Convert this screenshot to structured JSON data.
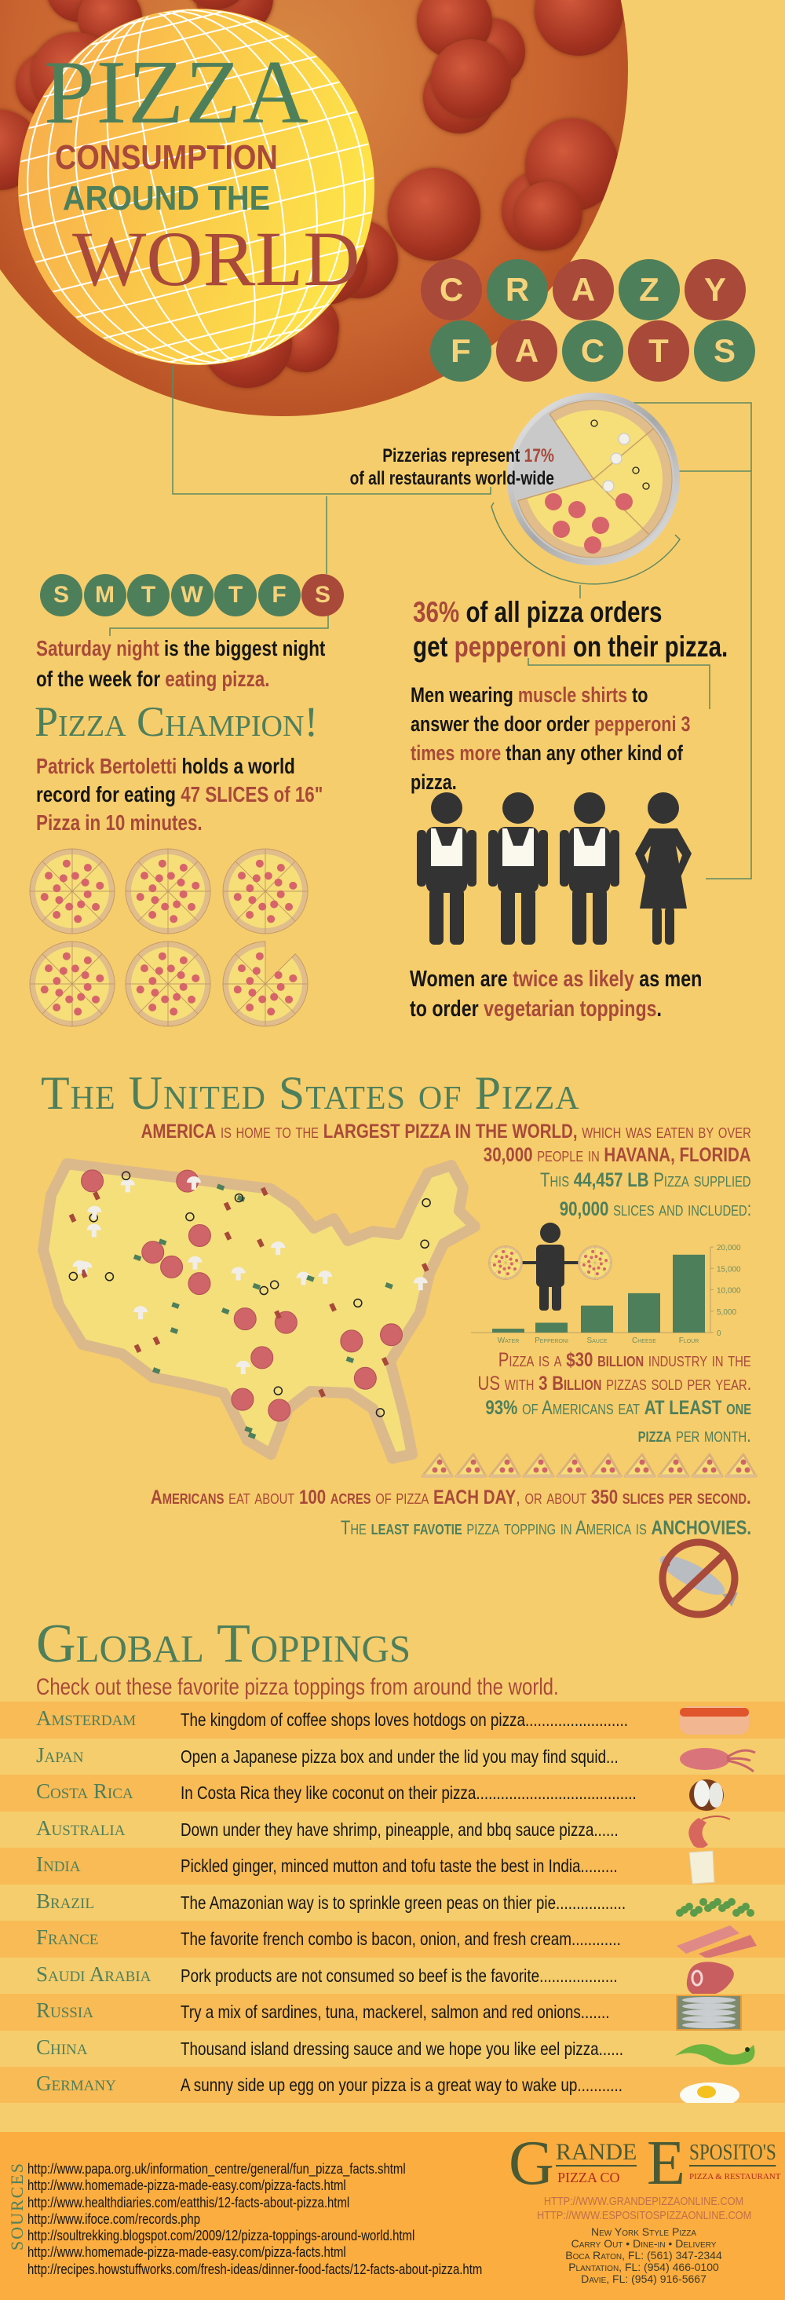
{
  "colors": {
    "background": "#f6cd6c",
    "green": "#4e7f5b",
    "red": "#a8493a",
    "text": "#161616",
    "band_dark": "#f8bb55",
    "band_light": "#f6cd6c",
    "footer": "#fbad3f"
  },
  "header": {
    "title_pizza": "PIZZA",
    "title_consumption": "CONSUMPTION",
    "title_around": "AROUND THE",
    "title_world": "WORLD"
  },
  "crazy_facts": {
    "row1": [
      "C",
      "R",
      "A",
      "Z",
      "Y"
    ],
    "row2": [
      "F",
      "A",
      "C",
      "T",
      "S"
    ]
  },
  "facts": {
    "pizzerias": [
      [
        {
          "t": "Pizzerias represent ",
          "c": "dark"
        },
        {
          "t": "17%",
          "c": "red"
        }
      ],
      [
        {
          "t": "of all restaurants world-wide",
          "c": "dark"
        }
      ]
    ],
    "weekdays": [
      "S",
      "M",
      "T",
      "W",
      "T",
      "F",
      "S"
    ],
    "saturday": [
      [
        {
          "t": "Saturday night",
          "c": "red"
        },
        {
          "t": " is the biggest night",
          "c": "dark"
        }
      ],
      [
        {
          "t": "of the week for ",
          "c": "dark"
        },
        {
          "t": "eating pizza.",
          "c": "red"
        }
      ]
    ],
    "champion_title": "Pizza Champion!",
    "champion": [
      [
        {
          "t": "Patrick Bertoletti",
          "c": "red"
        },
        {
          "t": " holds a world",
          "c": "dark"
        }
      ],
      [
        {
          "t": "record for eating ",
          "c": "dark"
        },
        {
          "t": "47 SLICES of 16\"",
          "c": "red"
        }
      ],
      [
        {
          "t": "Pizza in 10 minutes.",
          "c": "red"
        }
      ]
    ],
    "pepperoni": [
      [
        {
          "t": "36%",
          "c": "red"
        },
        {
          "t": " of all pizza orders",
          "c": "dark"
        }
      ],
      [
        {
          "t": "get ",
          "c": "dark"
        },
        {
          "t": "pepperoni",
          "c": "red"
        },
        {
          "t": " on their pizza.",
          "c": "dark"
        }
      ]
    ],
    "muscle": [
      [
        {
          "t": "Men wearing ",
          "c": "dark"
        },
        {
          "t": "muscle shirts",
          "c": "red"
        },
        {
          "t": " to",
          "c": "dark"
        }
      ],
      [
        {
          "t": "answer the door order ",
          "c": "dark"
        },
        {
          "t": "pepperoni 3",
          "c": "red"
        }
      ],
      [
        {
          "t": "times more",
          "c": "red"
        },
        {
          "t": " than any other kind of",
          "c": "dark"
        }
      ],
      [
        {
          "t": "pizza.",
          "c": "dark"
        }
      ]
    ],
    "women": [
      [
        {
          "t": "Women are ",
          "c": "dark"
        },
        {
          "t": "twice as likely",
          "c": "red"
        },
        {
          "t": " as men",
          "c": "dark"
        }
      ],
      [
        {
          "t": "to order ",
          "c": "dark"
        },
        {
          "t": "vegetarian toppings",
          "c": "red"
        },
        {
          "t": ".",
          "c": "dark"
        }
      ]
    ]
  },
  "us": {
    "title": "The United States of Pizza",
    "lines": [
      [
        {
          "t": "AMERICA",
          "c": "red",
          "b": true
        },
        {
          "t": " is home to the ",
          "c": "red"
        },
        {
          "t": "LARGEST PIZZA IN THE WORLD,",
          "c": "red",
          "b": true
        },
        {
          "t": " which was eaten by  over",
          "c": "red"
        }
      ],
      [
        {
          "t": "30,000",
          "c": "red",
          "b": true
        },
        {
          "t": " people in ",
          "c": "red"
        },
        {
          "t": "HAVANA, FLORIDA",
          "c": "red",
          "b": true
        }
      ],
      [
        {
          "t": "This ",
          "c": "green"
        },
        {
          "t": "44,457 LB",
          "c": "green",
          "b": true
        },
        {
          "t": " Pizza  supplied",
          "c": "green"
        }
      ],
      [
        {
          "t": "90,000",
          "c": "green",
          "b": true
        },
        {
          "t": " slices and included:",
          "c": "green"
        }
      ],
      [
        {
          "t": "Pizza is a ",
          "c": "red"
        },
        {
          "t": "$30 billion",
          "c": "red",
          "b": true
        },
        {
          "t": " industry in the",
          "c": "red"
        }
      ],
      [
        {
          "t": "US with ",
          "c": "red"
        },
        {
          "t": "3 Billion",
          "c": "red",
          "b": true
        },
        {
          "t": " pizzas sold per year.",
          "c": "red"
        }
      ],
      [
        {
          "t": "93%",
          "c": "green",
          "b": true
        },
        {
          "t": " of Americans eat ",
          "c": "green"
        },
        {
          "t": "AT LEAST",
          "c": "green",
          "b": true
        },
        {
          "t": " one",
          "c": "green",
          "b": true
        }
      ],
      [
        {
          "t": "pizza",
          "c": "green",
          "b": true
        },
        {
          "t": " per month.",
          "c": "green"
        }
      ],
      [
        {
          "t": "Americans",
          "c": "red",
          "b": true
        },
        {
          "t": " eat about ",
          "c": "red"
        },
        {
          "t": "100 acres",
          "c": "red",
          "b": true
        },
        {
          "t": " of pizza ",
          "c": "red"
        },
        {
          "t": "EACH DAY",
          "c": "red",
          "b": true
        },
        {
          "t": ", or about ",
          "c": "red"
        },
        {
          "t": "350 slices per second.",
          "c": "red",
          "b": true
        }
      ],
      [
        {
          "t": "The ",
          "c": "green"
        },
        {
          "t": "least favotie",
          "c": "green",
          "b": true
        },
        {
          "t": " pizza topping in America is ",
          "c": "green"
        },
        {
          "t": "ANCHOVIES.",
          "c": "green",
          "b": true
        }
      ]
    ]
  },
  "chart_data": {
    "type": "bar",
    "categories": [
      "Water",
      "Pepperoni",
      "Sauce",
      "Cheese",
      "Flour"
    ],
    "values": [
      900,
      2300,
      6300,
      9200,
      18200
    ],
    "title": "",
    "xlabel": "",
    "ylabel": "",
    "ylim": [
      0,
      20000
    ],
    "yticks": [
      "0",
      "5,000",
      "10,000",
      "15,000",
      "20,000"
    ],
    "bar_color": "#4e7f5b",
    "axis": "right",
    "grid": false
  },
  "toppings": {
    "title": "Global Toppings",
    "subtitle": "Check out these favorite pizza toppings from around the world.",
    "rows": [
      {
        "country": "Amsterdam",
        "description": "The kingdom of coffee shops loves hotdogs on pizza.........................",
        "icon": "hotdog"
      },
      {
        "country": "Japan",
        "description": "Open a Japanese pizza box and under the lid you may find squid...",
        "icon": "squid"
      },
      {
        "country": "Costa Rica",
        "description": "In Costa Rica they like coconut on their pizza.......................................",
        "icon": "coconut"
      },
      {
        "country": "Australia",
        "description": "Down under they have shrimp, pineapple, and bbq sauce pizza......",
        "icon": "shrimp"
      },
      {
        "country": "India",
        "description": "Pickled ginger, minced mutton and tofu taste the best in India.........",
        "icon": "tofu"
      },
      {
        "country": "Brazil",
        "description": "The Amazonian way is to sprinkle green peas on thier pie.................",
        "icon": "peas"
      },
      {
        "country": "France",
        "description": "The favorite french combo is bacon, onion, and fresh cream............",
        "icon": "bacon"
      },
      {
        "country": "Saudi Arabia",
        "description": "Pork products are not consumed so beef is the favorite...................",
        "icon": "beef"
      },
      {
        "country": "Russia",
        "description": "Try a mix of sardines, tuna, mackerel, salmon and red onions.......",
        "icon": "sardines"
      },
      {
        "country": "China",
        "description": "Thousand island dressing sauce and we hope you like eel pizza......",
        "icon": "eel"
      },
      {
        "country": "Germany",
        "description": "A sunny side up egg on your pizza is a great way to wake up...........",
        "icon": "egg"
      }
    ]
  },
  "footer": {
    "sources_label": "SOURCES",
    "sources": [
      "http://www.papa.org.uk/information_centre/general/fun_pizza_facts.shtml",
      "http://www.homemade-pizza-made-easy.com/pizza-facts.html",
      "http://www.healthdiaries.com/eatthis/12-facts-about-pizza.html",
      "http://www.ifoce.com/records.php",
      "http://soultrekking.blogspot.com/2009/12/pizza-toppings-around-world.html",
      "http://www.homemade-pizza-made-easy.com/pizza-facts.html",
      "http://recipes.howstuffworks.com/fresh-ideas/dinner-food-facts/12-facts-about-pizza.htm"
    ],
    "logo_grande": {
      "initial": "G",
      "rest": "RANDE",
      "sub": "PIZZA CO"
    },
    "logo_esposito": {
      "initial": "E",
      "rest": "SPOSITO'S",
      "sub": "PIZZA & RESTAURANT"
    },
    "links": [
      "HTTP://WWW.GRANDEPIZZAONLINE.COM",
      "HTTP://WWW.ESPOSITOSPIZZAONLINE.COM"
    ],
    "address": [
      "New York Style Pizza",
      "Carry Out • Dine-in • Delivery",
      "Boca Raton, FL:  (561) 347-2344",
      "Plantation, FL:  (954) 466-0100",
      "Davie, FL: (954) 916-5667"
    ]
  }
}
